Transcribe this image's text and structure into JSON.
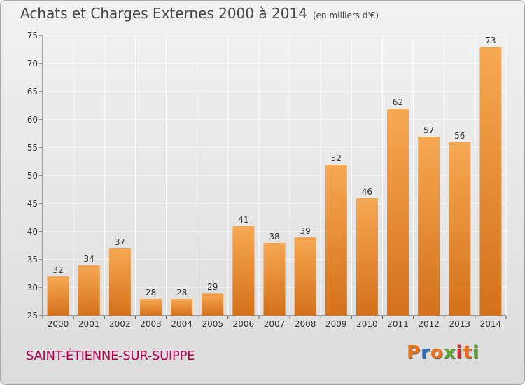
{
  "header": {
    "title": "Achats et Charges Externes 2000 à 2014",
    "subtitle": "(en milliers d'€)"
  },
  "footer": {
    "location": "SAINT-ÉTIENNE-SUR-SUIPPE",
    "logo": "Proxiti"
  },
  "colors": {
    "bar_top": "#f7a853",
    "bar_bottom": "#d4711a",
    "location": "#b5004f",
    "logo_letters": [
      "#e8731a",
      "#2a6ebb",
      "#e8731a",
      "#5aa62b",
      "#d02a2a",
      "#e8731a",
      "#5aa62b"
    ]
  },
  "chart_data": {
    "type": "bar",
    "categories": [
      "2000",
      "2001",
      "2002",
      "2003",
      "2004",
      "2005",
      "2006",
      "2007",
      "2008",
      "2009",
      "2010",
      "2011",
      "2012",
      "2013",
      "2014"
    ],
    "values": [
      32,
      34,
      37,
      28,
      28,
      29,
      41,
      38,
      39,
      52,
      46,
      62,
      57,
      56,
      73
    ],
    "title": "Achats et Charges Externes 2000 à 2014",
    "ylim": [
      25,
      75
    ],
    "yticks": [
      25,
      30,
      35,
      40,
      45,
      50,
      55,
      60,
      65,
      70,
      75
    ],
    "grid": true,
    "data_labels": true
  }
}
